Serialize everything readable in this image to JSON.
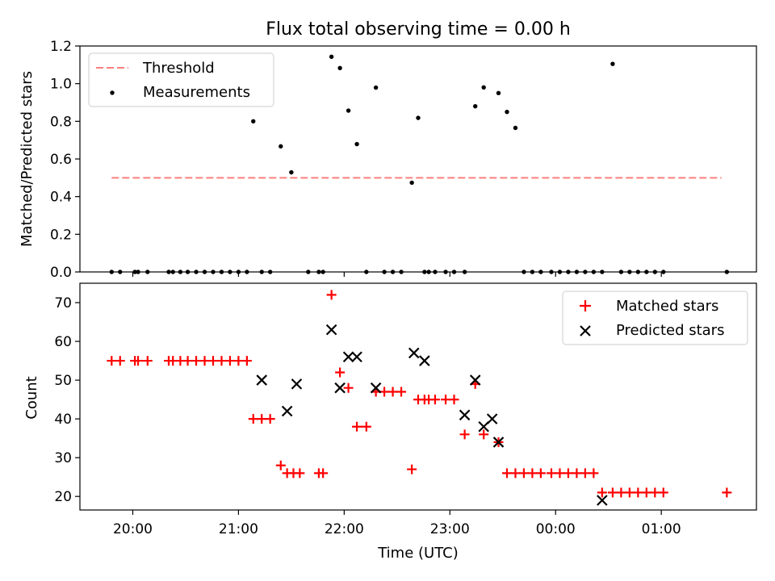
{
  "chart_data": [
    {
      "type": "scatter",
      "title": "Flux total observing time = 0.00 h",
      "xlabel": "",
      "ylabel": "Matched/Predicted stars",
      "ylim": [
        0,
        1.2
      ],
      "yticks": [
        0.0,
        0.2,
        0.4,
        0.6,
        0.8,
        1.0,
        1.2
      ],
      "ytick_labels": [
        "0.0",
        "0.2",
        "0.4",
        "0.6",
        "0.8",
        "1.0",
        "1.2"
      ],
      "x_unit": "hours since 19:00 UTC",
      "xlim": [
        0.5,
        6.9
      ],
      "xticks": [
        1,
        2,
        3,
        4,
        5,
        6
      ],
      "xtick_labels": [
        "",
        "",
        "",
        "",
        "",
        ""
      ],
      "legend": {
        "position": "upper left",
        "entries": [
          "Threshold",
          "Measurements"
        ]
      },
      "series": [
        {
          "name": "Threshold",
          "kind": "dashed-line",
          "color": "#ff7f7f",
          "x": [
            0.8,
            6.57
          ],
          "y": [
            0.5,
            0.5
          ]
        },
        {
          "name": "Measurements",
          "kind": "dot",
          "color": "#000000",
          "x": [
            0.8,
            0.88,
            1.02,
            1.05,
            1.14,
            1.34,
            1.38,
            1.45,
            1.52,
            1.6,
            1.68,
            1.76,
            1.84,
            1.92,
            2.0,
            2.08,
            2.14,
            2.22,
            2.3,
            2.4,
            2.5,
            2.66,
            2.76,
            2.8,
            2.88,
            2.96,
            3.04,
            3.12,
            3.21,
            3.3,
            3.38,
            3.46,
            3.54,
            3.64,
            3.7,
            3.76,
            3.8,
            3.86,
            3.96,
            4.04,
            4.14,
            4.24,
            4.32,
            4.46,
            4.54,
            4.62,
            4.7,
            4.78,
            4.86,
            4.96,
            5.04,
            5.12,
            5.2,
            5.28,
            5.36,
            5.44,
            5.54,
            5.62,
            5.7,
            5.78,
            5.86,
            5.94,
            6.02,
            6.62
          ],
          "y": [
            0,
            0,
            0,
            0,
            0,
            0,
            0,
            0,
            0,
            0,
            0,
            0,
            0,
            0,
            0,
            0,
            0.8,
            0,
            0,
            0.667,
            0.529,
            0,
            0,
            0,
            1.143,
            1.083,
            0.857,
            0.679,
            0,
            0.979,
            0,
            0,
            0,
            0.474,
            0.818,
            0,
            0,
            0,
            0,
            0,
            0,
            0.88,
            0.98,
            0.95,
            0.85,
            0.765,
            0,
            0,
            0,
            0,
            0,
            0,
            0,
            0,
            0,
            0,
            1.105,
            0,
            0,
            0,
            0,
            0,
            0,
            0
          ]
        }
      ]
    },
    {
      "type": "scatter",
      "title": "",
      "xlabel": "Time (UTC)",
      "ylabel": "Count",
      "ylim": [
        16.5,
        75
      ],
      "yticks": [
        20,
        30,
        40,
        50,
        60,
        70
      ],
      "ytick_labels": [
        "20",
        "30",
        "40",
        "50",
        "60",
        "70"
      ],
      "x_unit": "hours since 19:00 UTC",
      "xlim": [
        0.5,
        6.9
      ],
      "xticks": [
        1,
        2,
        3,
        4,
        5,
        6
      ],
      "xtick_labels": [
        "20:00",
        "21:00",
        "22:00",
        "23:00",
        "00:00",
        "01:00"
      ],
      "legend": {
        "position": "upper right",
        "entries": [
          "Matched stars",
          "Predicted stars"
        ]
      },
      "series": [
        {
          "name": "Matched stars",
          "kind": "plus",
          "color": "#ff0000",
          "x": [
            0.8,
            0.88,
            1.02,
            1.05,
            1.14,
            1.34,
            1.38,
            1.45,
            1.52,
            1.6,
            1.68,
            1.76,
            1.84,
            1.92,
            2.0,
            2.08,
            2.14,
            2.22,
            2.3,
            2.4,
            2.46,
            2.52,
            2.58,
            2.76,
            2.8,
            2.88,
            2.96,
            3.04,
            3.12,
            3.21,
            3.3,
            3.38,
            3.46,
            3.54,
            3.64,
            3.7,
            3.76,
            3.8,
            3.86,
            3.96,
            4.04,
            4.14,
            4.24,
            4.32,
            4.46,
            4.54,
            4.62,
            4.7,
            4.78,
            4.86,
            4.96,
            5.04,
            5.12,
            5.2,
            5.28,
            5.36,
            5.44,
            5.54,
            5.62,
            5.7,
            5.78,
            5.86,
            5.94,
            6.02,
            6.62
          ],
          "y": [
            55,
            55,
            55,
            55,
            55,
            55,
            55,
            55,
            55,
            55,
            55,
            55,
            55,
            55,
            55,
            55,
            40,
            40,
            40,
            28,
            26,
            26,
            26,
            26,
            26,
            72,
            52,
            48,
            38,
            38,
            47,
            47,
            47,
            47,
            27,
            45,
            45,
            45,
            45,
            45,
            45,
            36,
            49,
            36,
            34,
            26,
            26,
            26,
            26,
            26,
            26,
            26,
            26,
            26,
            26,
            26,
            21,
            21,
            21,
            21,
            21,
            21,
            21,
            21,
            21
          ]
        },
        {
          "name": "Predicted stars",
          "kind": "x",
          "color": "#000000",
          "x": [
            2.22,
            2.46,
            2.55,
            2.88,
            2.96,
            3.04,
            3.12,
            3.3,
            3.66,
            3.76,
            4.14,
            4.24,
            4.32,
            4.4,
            4.46,
            5.44
          ],
          "y": [
            50,
            42,
            49,
            63,
            48,
            56,
            56,
            48,
            57,
            55,
            41,
            50,
            38,
            40,
            34,
            19
          ]
        }
      ]
    }
  ]
}
